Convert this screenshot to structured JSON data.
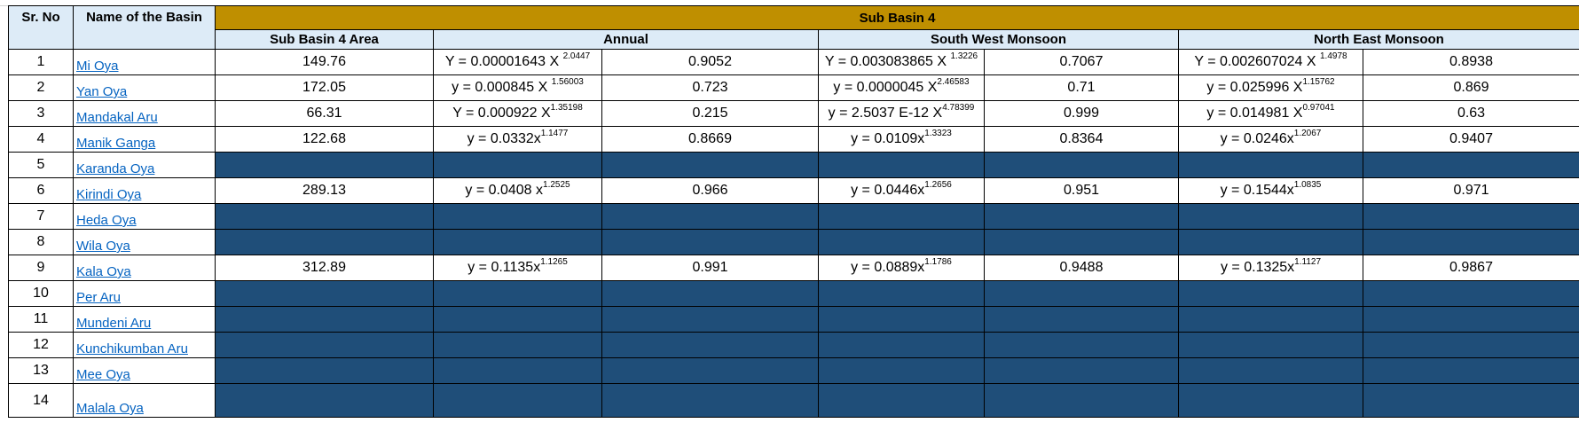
{
  "header": {
    "sr_no": "Sr. No",
    "name": "Name of the Basin",
    "group": "Sub Basin 4",
    "area": "Sub Basin 4 Area",
    "annual": "Annual",
    "sw": "South West Monsoon",
    "ne": "North East Monsoon"
  },
  "colors": {
    "gold": "#bf8f00",
    "header_bg": "#ddebf7",
    "empty_fill": "#1f4e79",
    "link": "#0563c1"
  },
  "rows": [
    {
      "no": "1",
      "name": "Mi Oya",
      "area": "149.76",
      "annual_eq": "Y = 0.00001643 X ",
      "annual_exp": "2.0447",
      "annual_r": "0.9052",
      "sw_eq": "Y = 0.003083865 X ",
      "sw_exp": "1.3226",
      "sw_r": "0.7067",
      "ne_eq": "Y = 0.002607024 X ",
      "ne_exp": "1.4978",
      "ne_r": "0.8938"
    },
    {
      "no": "2",
      "name": "Yan Oya",
      "area": "172.05",
      "annual_eq": "y = 0.000845 X ",
      "annual_exp": "1.56003",
      "annual_r": "0.723",
      "sw_eq": "y = 0.0000045 X",
      "sw_exp": "2.46583",
      "sw_r": "0.71",
      "ne_eq": "y = 0.025996 X",
      "ne_exp": "1.15762",
      "ne_r": "0.869"
    },
    {
      "no": "3",
      "name": "Mandakal Aru",
      "area": "66.31",
      "annual_eq": "Y = 0.000922 X",
      "annual_exp": "1.35198",
      "annual_r": "0.215",
      "sw_eq": "y = 2.5037 E-12 X",
      "sw_exp": "4.78399",
      "sw_r": "0.999",
      "ne_eq": "y = 0.014981 X",
      "ne_exp": "0.97041",
      "ne_r": "0.63"
    },
    {
      "no": "4",
      "name": "Manik Ganga",
      "area": "122.68",
      "annual_eq": "y = 0.0332x",
      "annual_exp": "1.1477",
      "annual_r": "0.8669",
      "sw_eq": "y = 0.0109x",
      "sw_exp": "1.3323",
      "sw_r": "0.8364",
      "ne_eq": "y = 0.0246x",
      "ne_exp": "1.2067",
      "ne_r": "0.9407"
    },
    {
      "no": "5",
      "name": "Karanda Oya",
      "empty": true
    },
    {
      "no": "6",
      "name": "Kirindi Oya",
      "area": "289.13",
      "annual_eq": "y = 0.0408 x",
      "annual_exp": "1.2525",
      "annual_r": "0.966",
      "sw_eq": "y = 0.0446x",
      "sw_exp": "1.2656",
      "sw_r": "0.951",
      "ne_eq": "y = 0.1544x",
      "ne_exp": "1.0835",
      "ne_r": "0.971"
    },
    {
      "no": "7",
      "name": "Heda Oya",
      "empty": true
    },
    {
      "no": "8",
      "name": "Wila Oya",
      "empty": true
    },
    {
      "no": "9",
      "name": "Kala Oya",
      "area": "312.89",
      "annual_eq": "y = 0.1135x",
      "annual_exp": "1.1265",
      "annual_r": "0.991",
      "sw_eq": "y = 0.0889x",
      "sw_exp": "1.1786",
      "sw_r": "0.9488",
      "ne_eq": "y = 0.1325x",
      "ne_exp": "1.1127",
      "ne_r": "0.9867"
    },
    {
      "no": "10",
      "name": "Per Aru",
      "empty": true
    },
    {
      "no": "11",
      "name": "Mundeni Aru",
      "empty": true
    },
    {
      "no": "12",
      "name": "Kunchikumban Aru",
      "empty": true
    },
    {
      "no": "13",
      "name": "Mee Oya",
      "empty": true
    },
    {
      "no": "14",
      "name": "Malala Oya",
      "empty": true
    }
  ]
}
